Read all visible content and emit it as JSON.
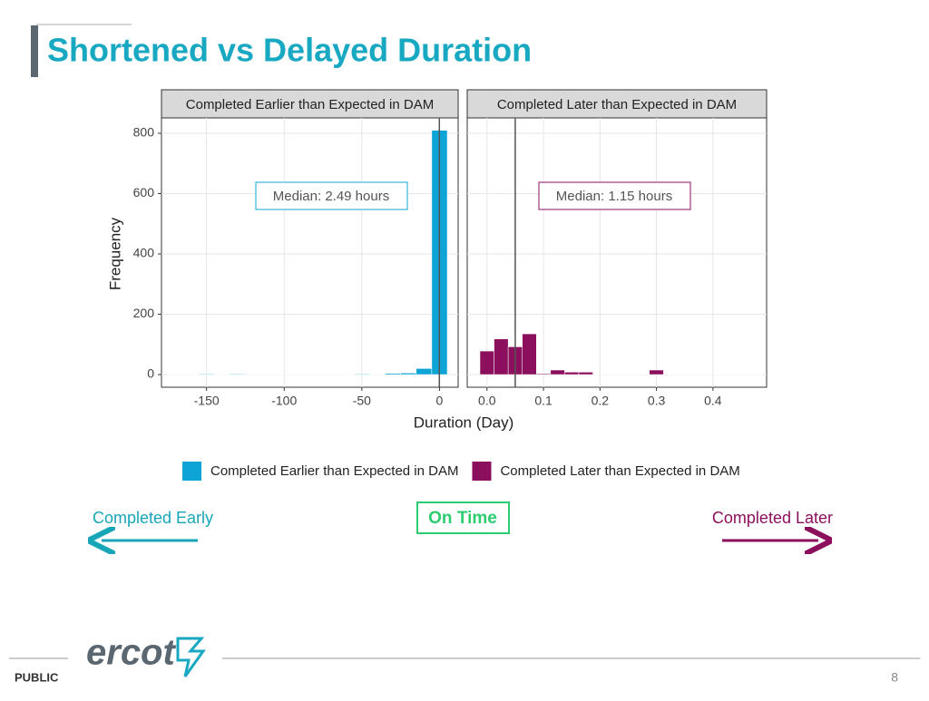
{
  "title": "Shortened vs Delayed Duration",
  "shared": {
    "xlabel": "Duration (Day)",
    "ylabel": "Frequency"
  },
  "chart_data": [
    {
      "type": "histogram",
      "title": "Completed Earlier than Expected in DAM",
      "bins": [
        -175,
        -165,
        -155,
        -145,
        -135,
        -125,
        -115,
        -105,
        -95,
        -85,
        -75,
        -65,
        -55,
        -45,
        -35,
        -25,
        -15,
        -5,
        5
      ],
      "series": [
        {
          "name": "Completed Earlier than Expected in DAM",
          "color": "#0ea5d6",
          "values": [
            1,
            1,
            2,
            1,
            2,
            1,
            1,
            1,
            1,
            1,
            1,
            1,
            2,
            1,
            4,
            5,
            20,
            810
          ]
        }
      ],
      "xlim": [
        -179,
        12
      ],
      "ylim": [
        -42,
        851
      ],
      "xticks": [
        -150,
        -100,
        -50,
        0
      ],
      "yticks": [
        0,
        200,
        400,
        600,
        800
      ],
      "vline": -0.1,
      "annotation": "Median: 2.49 hours",
      "grid": true
    },
    {
      "type": "histogram",
      "title": "Completed Later than Expected in DAM",
      "bins": [
        -0.0125,
        0.0125,
        0.0375,
        0.0625,
        0.0875,
        0.1125,
        0.1375,
        0.1625,
        0.1875,
        0.2125,
        0.2375,
        0.2625,
        0.2875,
        0.3125,
        0.3375,
        0.3625,
        0.3875,
        0.4125,
        0.4375,
        0.4625,
        0.4875
      ],
      "series": [
        {
          "name": "Completed Later than Expected in DAM",
          "color": "#8b0f5c",
          "values": [
            78,
            118,
            92,
            135,
            3,
            15,
            8,
            8,
            1,
            1,
            1,
            1,
            15,
            1,
            1,
            1,
            1,
            1,
            1,
            1
          ]
        }
      ],
      "xlim": [
        -0.035,
        0.495
      ],
      "ylim": [
        -42,
        851
      ],
      "xticks": [
        {
          "value": 0,
          "label": "0.0"
        },
        0.1,
        0.2,
        0.3,
        0.4
      ],
      "yticks": [
        0,
        200,
        400,
        600,
        800
      ],
      "vline": 0.05,
      "annotation": "Median: 1.15 hours",
      "grid": true
    }
  ],
  "arrows": {
    "early": "Completed Early",
    "ontime": "On Time",
    "later": "Completed Later"
  },
  "footer": {
    "logo": "ercot",
    "label": "PUBLIC",
    "page": "8"
  }
}
